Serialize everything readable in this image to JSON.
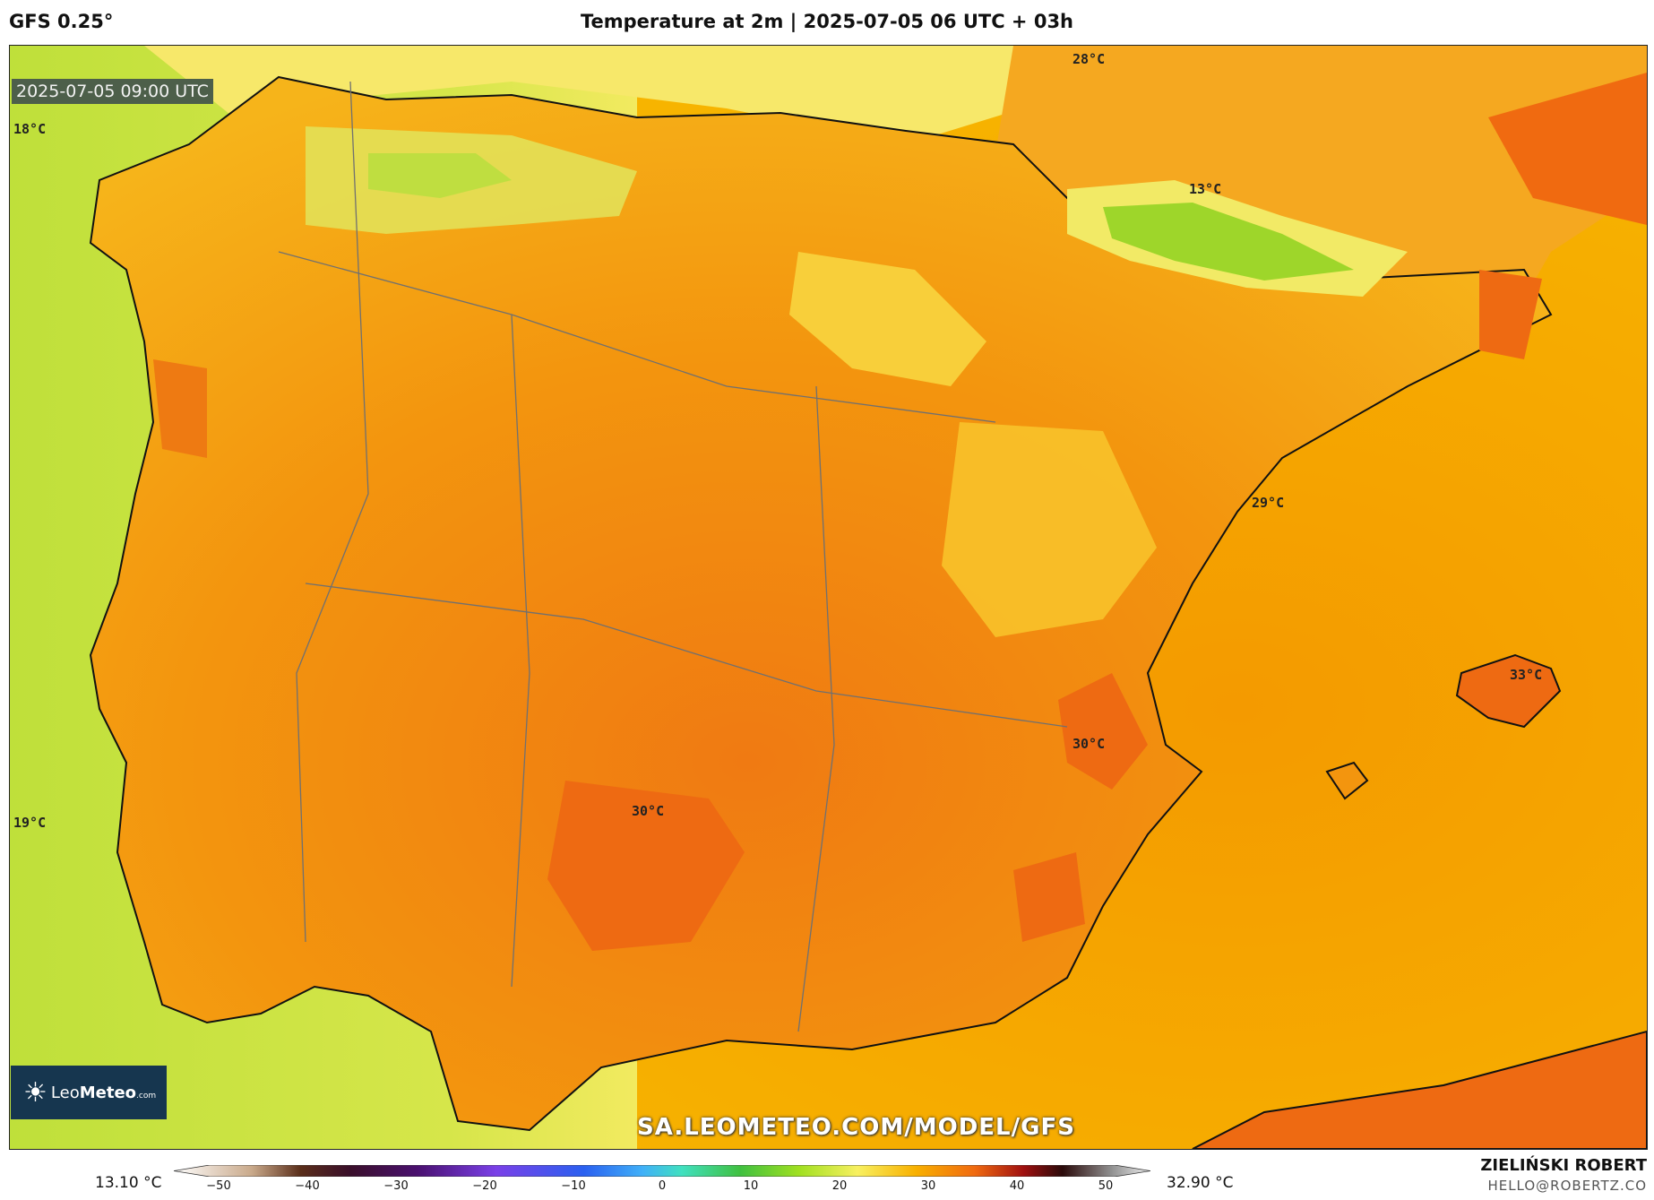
{
  "header": {
    "model": "GFS 0.25°",
    "title": "Temperature at 2m | 2025-07-05 06 UTC + 03h"
  },
  "map": {
    "timestamp": "2025-07-05 09:00 UTC",
    "labels": [
      {
        "text": "18°C"
      },
      {
        "text": "28°C"
      },
      {
        "text": "13°C"
      },
      {
        "text": "29°C"
      },
      {
        "text": "33°C"
      },
      {
        "text": "30°C"
      },
      {
        "text": "30°C"
      },
      {
        "text": "19°C"
      }
    ],
    "colors": {
      "sea_cool": "#c5e03a",
      "sea_warm": "#f5a000",
      "land_warm": "#f39410",
      "land_hot": "#f07010",
      "mountain_cool": "#8fd020",
      "coastline": "#111111",
      "borders": "#707070"
    }
  },
  "logo": {
    "brand_a": "Leo",
    "brand_b": "Meteo",
    "suffix": ".com"
  },
  "watermark": "SA.LEOMETEO.COM/MODEL/GFS",
  "colorbar": {
    "min_label": "13.10 °C",
    "max_label": "32.90 °C",
    "ticks": [
      "−50",
      "−40",
      "−30",
      "−20",
      "−10",
      "0",
      "10",
      "20",
      "30",
      "40",
      "50"
    ]
  },
  "footer": {
    "author": "ZIELIŃSKI ROBERT",
    "email": "HELLO@ROBERTZ.CO"
  }
}
